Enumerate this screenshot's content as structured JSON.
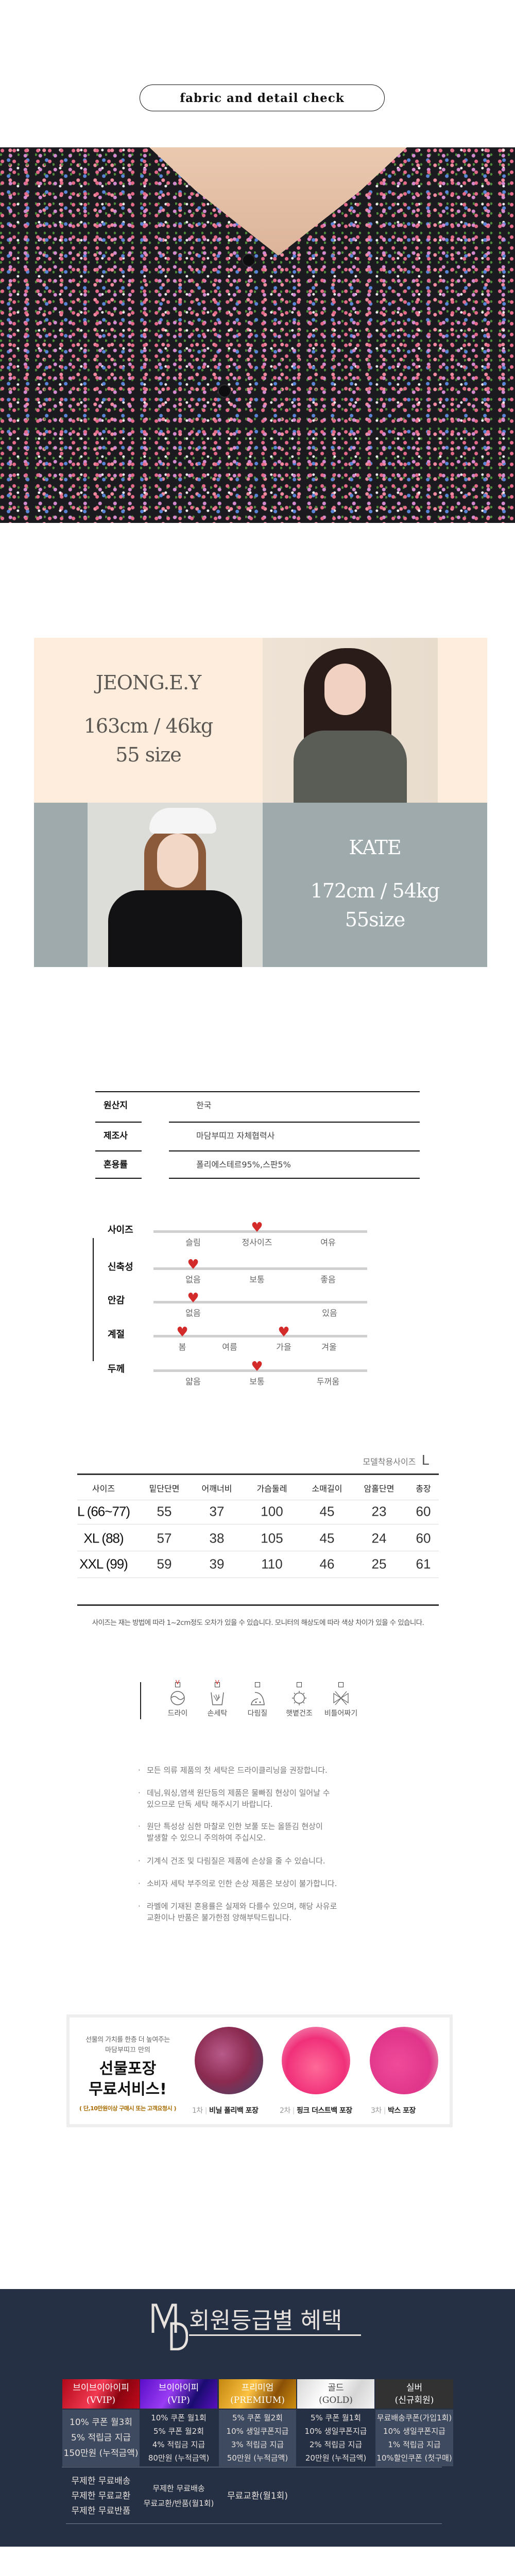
{
  "header": {
    "title": "fabric and detail check"
  },
  "models": [
    {
      "name": "JEONG.E.Y",
      "stats": "163cm / 46kg",
      "size": "55 size",
      "bg": "#feeddc",
      "color": "#5a5652"
    },
    {
      "name": "KATE",
      "stats": "172cm / 54kg",
      "size": "55size",
      "bg": "#9eaaab",
      "color": "#ffffff"
    }
  ],
  "fabric_info": {
    "rows": [
      {
        "label": "원산지",
        "value": "한국"
      },
      {
        "label": "제조사",
        "value": "마담부띠끄 자체협력사"
      },
      {
        "label": "혼용률",
        "value": "폴리에스테르95%,스판5%"
      }
    ]
  },
  "characteristics": [
    {
      "label": "사이즈",
      "options": [
        "슬림",
        "정사이즈",
        "여유"
      ],
      "selected": [
        1
      ]
    },
    {
      "label": "신축성",
      "options": [
        "없음",
        "보통",
        "좋음"
      ],
      "selected": [
        0
      ]
    },
    {
      "label": "안감",
      "options": [
        "없음",
        "있음"
      ],
      "selected": [
        0
      ]
    },
    {
      "label": "계절",
      "options": [
        "봄",
        "여름",
        "가을",
        "겨울"
      ],
      "selected": [
        0,
        2
      ]
    },
    {
      "label": "두께",
      "options": [
        "얇음",
        "보통",
        "두꺼움"
      ],
      "selected": [
        1
      ]
    }
  ],
  "size_table": {
    "model_size_label": "모델착용사이즈",
    "model_size_value": "L",
    "headers": [
      "사이즈",
      "밑단단면",
      "어깨너비",
      "가슴둘레",
      "소매길이",
      "암홀단면",
      "총장"
    ],
    "rows": [
      [
        "L (66~77)",
        "55",
        "37",
        "100",
        "45",
        "23",
        "60"
      ],
      [
        "XL (88)",
        "57",
        "38",
        "105",
        "45",
        "24",
        "60"
      ],
      [
        "XXL (99)",
        "59",
        "39",
        "110",
        "46",
        "25",
        "61"
      ]
    ],
    "note": "사이즈는 재는 방법에 따라 1~2cm정도 오차가 있을 수 있습니다. 모니터의 해상도에 따라 색상 차이가 있을 수 있습니다."
  },
  "care": {
    "items": [
      {
        "label": "드라이",
        "checked": true,
        "icon": "dry-clean-icon"
      },
      {
        "label": "손세탁",
        "checked": true,
        "icon": "hand-wash-icon"
      },
      {
        "label": "다림질",
        "checked": false,
        "icon": "iron-icon"
      },
      {
        "label": "햇볕건조",
        "checked": false,
        "icon": "sun-dry-icon"
      },
      {
        "label": "비틀어짜기",
        "checked": false,
        "icon": "no-wring-icon"
      }
    ],
    "check_mark": "V",
    "check_color": "#e02020",
    "notes": [
      [
        "모든 의류 제품의 첫 세탁은 드라이클리닝을 권장합니다."
      ],
      [
        "데님,워싱,염색 원단등의 제품은 물빠짐 현상이 일어날 수",
        "있으므로 단독 세탁 해주시기 바랍니다."
      ],
      [
        "원단 특성상 심한 마찰로 인한 보풀 또는 올뜯김 현상이",
        "발생할 수 있으니 주의하여 주십시오."
      ],
      [
        "기계식 건조 및 다림질은 제품에 손상을 줄 수 있습니다."
      ],
      [
        "소비자 세탁 부주의로 인한 손상 제품은 보상이 불가합니다."
      ],
      [
        "라벨에 기재된 혼용률은 실제와 다를수 있으며, 해당 사유로",
        "교환이나 반품은 불가한점 양해부탁드립니다."
      ]
    ],
    "bullet": "·"
  },
  "gift": {
    "intro": [
      "선물의 가치를 한층 더 높여주는",
      "마담부띠끄 만의"
    ],
    "title": [
      "선물포장",
      "무료서비스!"
    ],
    "condition": "( 단,10만원이상 구매시 또는 고객요청시 )",
    "options": [
      {
        "step": "1차",
        "label": "비닐 폴리백 포장"
      },
      {
        "step": "2차",
        "label": "핑크 더스트백 포장"
      },
      {
        "step": "3차",
        "label": "박스 포장"
      }
    ]
  },
  "membership": {
    "logo": "MD",
    "title": "회원등급별 혜택",
    "tiers": [
      {
        "name": "브이브이아이피",
        "code": "(VVIP)",
        "bg": "linear-gradient(120deg,#b00818,#f23a52 45%,#8a0410 70%,#c40a1c)",
        "color": "#ffffff"
      },
      {
        "name": "브이아이피",
        "code": "(VIP)",
        "bg": "linear-gradient(120deg,#5a0ec8,#9a3cf4 40%,#1a0c70 70%,#5a10c0)",
        "color": "#ffffff"
      },
      {
        "name": "프리미엄",
        "code": "(PREMIUM)",
        "bg": "linear-gradient(120deg,#c48610,#fcc242 40%,#8a5006 70%,#d09010)",
        "color": "#ffffff"
      },
      {
        "name": "골드",
        "code": "(GOLD)",
        "bg": "linear-gradient(120deg,#d8d8d8,#ffffff 40%,#d6d6d6 70%,#f2f2f2)",
        "color": "#444444"
      },
      {
        "name": "실버",
        "code": "(신규회원)",
        "bg": "#323232",
        "color": "#ffffff"
      }
    ],
    "benefits": [
      [
        "10% 쿠폰 월3회",
        "5% 적립금 지급",
        "150만원 (누적금액)"
      ],
      [
        "10% 쿠폰 월1회",
        "5% 쿠폰 월2회",
        "4% 적립금 지급",
        "80만원 (누적금액)"
      ],
      [
        "5% 쿠폰 월2회",
        "10% 생일쿠폰지급",
        "3% 적립금 지급",
        "50만원 (누적금액)"
      ],
      [
        "5% 쿠폰 월1회",
        "10% 생일쿠폰지급",
        "2% 적립금 지급",
        "20만원 (누적금액)"
      ],
      [
        "무료배송쿠폰(가입1회)",
        "10% 생일쿠폰지급",
        "1% 적립금 지급",
        "10%할인쿠폰 (첫구매)"
      ]
    ],
    "extras": [
      [
        "무제한 무료배송",
        "무제한 무료교환",
        "무제한 무료반품"
      ],
      [
        "무제한 무료배송",
        "무료교환/반품(월1회)"
      ],
      [
        "무료교환(월1회)"
      ]
    ]
  }
}
